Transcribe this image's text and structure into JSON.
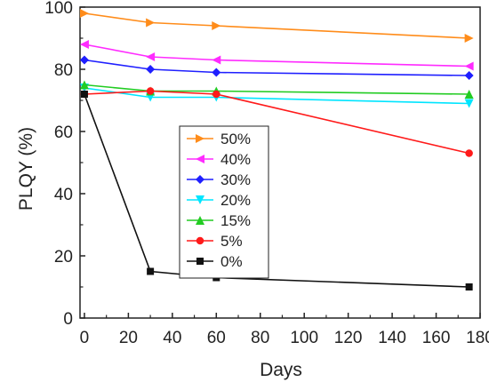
{
  "chart_data": {
    "type": "line",
    "xlabel": "Days",
    "ylabel": "PLQY (%)",
    "xlim": [
      -2,
      180
    ],
    "ylim": [
      0,
      100
    ],
    "x_ticks": [
      0,
      20,
      40,
      60,
      80,
      100,
      120,
      140,
      160,
      180
    ],
    "y_ticks": [
      0,
      20,
      40,
      60,
      80,
      100
    ],
    "x": [
      0,
      30,
      60,
      175
    ],
    "legend_placement": "center",
    "grid": false,
    "series": [
      {
        "name": "50%",
        "color": "#ff8c1a",
        "marker": "triangle-right",
        "values": [
          98,
          95,
          94,
          90
        ]
      },
      {
        "name": "40%",
        "color": "#ff2bff",
        "marker": "triangle-left",
        "values": [
          88,
          84,
          83,
          81
        ]
      },
      {
        "name": "30%",
        "color": "#1f1fff",
        "marker": "diamond",
        "values": [
          83,
          80,
          79,
          78
        ]
      },
      {
        "name": "20%",
        "color": "#00e5ff",
        "marker": "triangle-down",
        "values": [
          74,
          71,
          71,
          69
        ]
      },
      {
        "name": "15%",
        "color": "#22cc22",
        "marker": "triangle-up",
        "values": [
          75,
          73,
          73,
          72
        ]
      },
      {
        "name": "5%",
        "color": "#ff1a1a",
        "marker": "circle",
        "values": [
          72,
          73,
          72,
          53
        ]
      },
      {
        "name": "0%",
        "color": "#111111",
        "marker": "square",
        "values": [
          72,
          15,
          13,
          10
        ]
      }
    ]
  }
}
